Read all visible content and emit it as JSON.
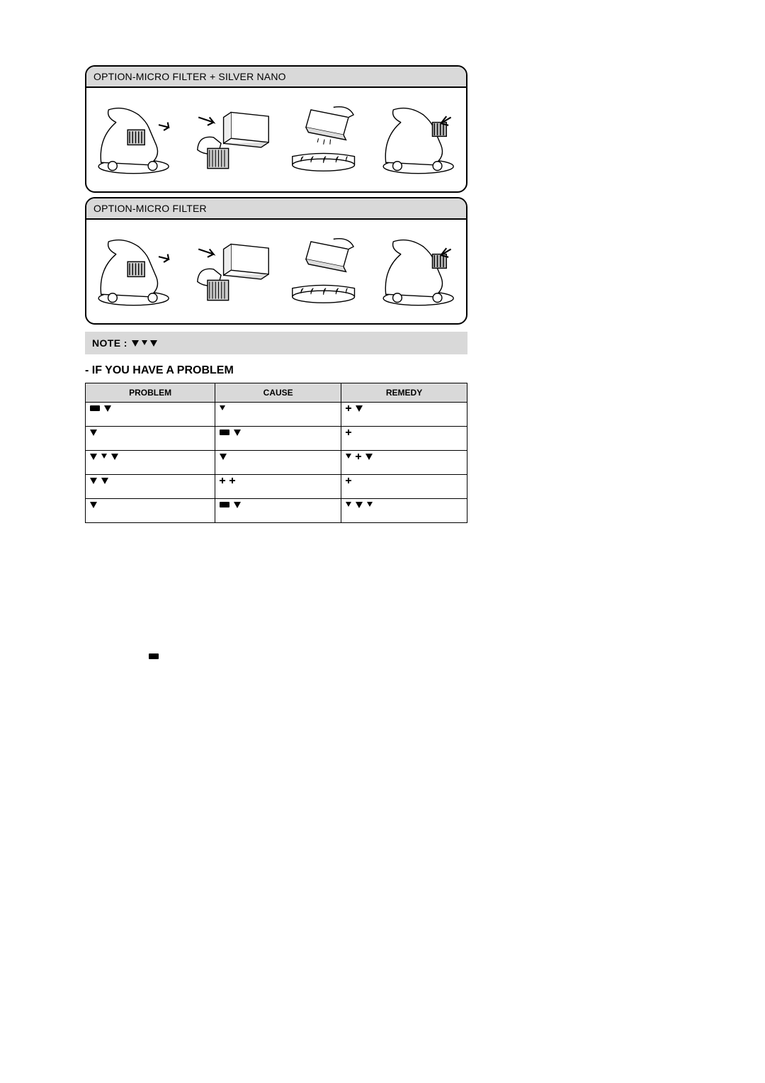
{
  "page": {
    "background_color": "#ffffff",
    "text_color": "#000000",
    "accent_gray": "#d9d9d9"
  },
  "panels": [
    {
      "title": "OPTION-MICRO FILTER + SILVER NANO"
    },
    {
      "title": "OPTION-MICRO FILTER"
    }
  ],
  "note": {
    "label": "NOTE :"
  },
  "section_heading": "- IF YOU HAVE A PROBLEM",
  "table": {
    "columns": [
      "PROBLEM",
      "CAUSE",
      "REMEDY"
    ],
    "column_widths_pct": [
      34,
      33,
      33
    ],
    "header_bg": "#d9d9d9",
    "rows": [
      {
        "problem_glyphs": [
          "bar",
          "tri"
        ],
        "cause_glyphs": [
          "tri-sm"
        ],
        "remedy_glyphs": [
          "dotsq",
          "tri"
        ]
      },
      {
        "problem_glyphs": [
          "tri"
        ],
        "cause_glyphs": [
          "bar",
          "tri"
        ],
        "remedy_glyphs": [
          "dotsq"
        ]
      },
      {
        "problem_glyphs": [
          "tri",
          "tri-sm",
          "tri"
        ],
        "cause_glyphs": [
          "tri"
        ],
        "remedy_glyphs": [
          "tri-sm",
          "dotsq",
          "tri"
        ]
      },
      {
        "problem_glyphs": [
          "tri",
          "tri"
        ],
        "cause_glyphs": [
          "dotsq",
          "dotsq"
        ],
        "remedy_glyphs": [
          "dotsq"
        ]
      },
      {
        "problem_glyphs": [
          "tri"
        ],
        "cause_glyphs": [
          "bar",
          "tri"
        ],
        "remedy_glyphs": [
          "tri-sm",
          "tri",
          "tri-sm"
        ]
      }
    ]
  },
  "compliance_text": ""
}
